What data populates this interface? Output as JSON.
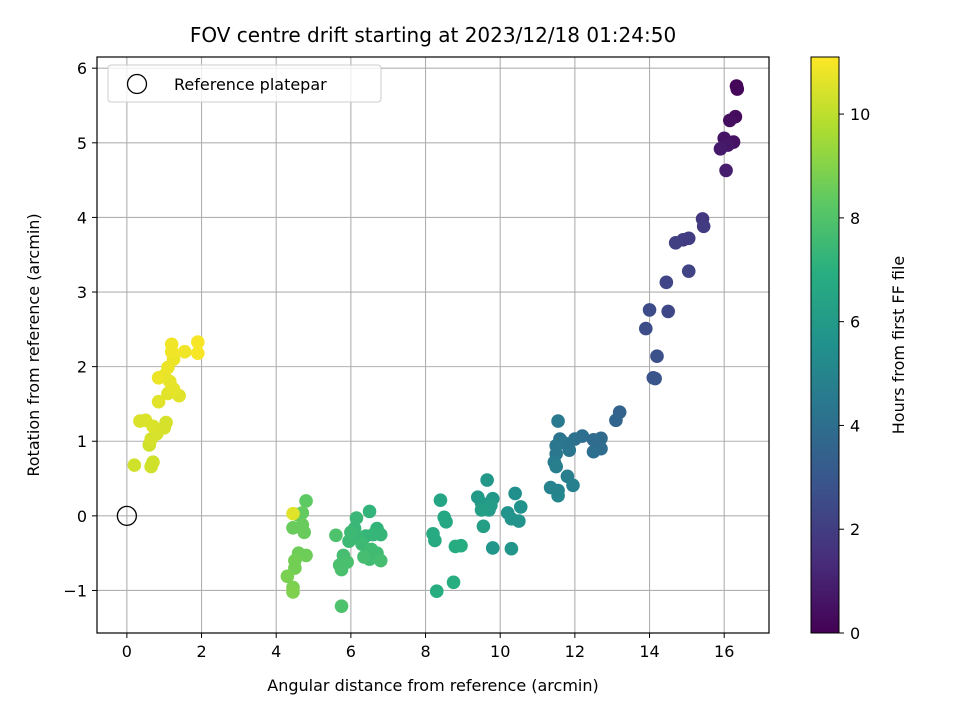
{
  "chart_data": {
    "type": "scatter",
    "title": "FOV centre drift starting at 2023/12/18 01:24:50",
    "xlabel": "Angular distance from reference (arcmin)",
    "ylabel": "Rotation from reference (arcmin)",
    "colorbar_label": "Hours from first FF file",
    "colormap": "viridis",
    "xlim": [
      -0.8,
      17.2
    ],
    "ylim": [
      -1.57,
      6.15
    ],
    "clim": [
      0,
      11.1
    ],
    "xticks": [
      "0",
      "2",
      "4",
      "6",
      "8",
      "10",
      "12",
      "14",
      "16"
    ],
    "xtick_values": [
      0,
      2,
      4,
      6,
      8,
      10,
      12,
      14,
      16
    ],
    "yticks": [
      "−1",
      "0",
      "1",
      "2",
      "3",
      "4",
      "5",
      "6"
    ],
    "ytick_values": [
      -1,
      0,
      1,
      2,
      3,
      4,
      5,
      6
    ],
    "cticks": [
      "0",
      "2",
      "4",
      "6",
      "8",
      "10"
    ],
    "ctick_values": [
      0,
      2,
      4,
      6,
      8,
      10
    ],
    "grid": true,
    "legend": {
      "placement": "top-left",
      "entries": [
        "Reference platepar"
      ]
    },
    "reference_point": {
      "x": 0,
      "y": 0
    },
    "points": [
      {
        "x": 16.33,
        "y": 5.76,
        "c": 0.1
      },
      {
        "x": 16.35,
        "y": 5.72,
        "c": 0.2
      },
      {
        "x": 16.3,
        "y": 5.35,
        "c": 0.3
      },
      {
        "x": 16.15,
        "y": 5.3,
        "c": 0.4
      },
      {
        "x": 16.25,
        "y": 5.01,
        "c": 0.5
      },
      {
        "x": 16.0,
        "y": 5.06,
        "c": 0.6
      },
      {
        "x": 16.1,
        "y": 4.97,
        "c": 0.7
      },
      {
        "x": 15.9,
        "y": 4.92,
        "c": 0.8
      },
      {
        "x": 16.05,
        "y": 4.63,
        "c": 0.9
      },
      {
        "x": 15.42,
        "y": 3.98,
        "c": 1.8
      },
      {
        "x": 15.45,
        "y": 3.88,
        "c": 1.9
      },
      {
        "x": 15.05,
        "y": 3.72,
        "c": 2.0
      },
      {
        "x": 14.9,
        "y": 3.7,
        "c": 2.0
      },
      {
        "x": 14.7,
        "y": 3.66,
        "c": 2.1
      },
      {
        "x": 15.05,
        "y": 3.28,
        "c": 2.2
      },
      {
        "x": 14.45,
        "y": 3.13,
        "c": 2.3
      },
      {
        "x": 14.5,
        "y": 2.74,
        "c": 2.4
      },
      {
        "x": 14.0,
        "y": 2.76,
        "c": 2.5
      },
      {
        "x": 13.9,
        "y": 2.51,
        "c": 2.6
      },
      {
        "x": 14.2,
        "y": 2.14,
        "c": 2.7
      },
      {
        "x": 14.1,
        "y": 1.85,
        "c": 2.8
      },
      {
        "x": 14.15,
        "y": 1.84,
        "c": 2.9
      },
      {
        "x": 13.2,
        "y": 1.39,
        "c": 3.5
      },
      {
        "x": 13.1,
        "y": 1.28,
        "c": 3.6
      },
      {
        "x": 12.7,
        "y": 1.04,
        "c": 3.8
      },
      {
        "x": 12.6,
        "y": 0.98,
        "c": 3.8
      },
      {
        "x": 12.7,
        "y": 0.9,
        "c": 3.9
      },
      {
        "x": 12.5,
        "y": 1.02,
        "c": 3.9
      },
      {
        "x": 12.5,
        "y": 0.86,
        "c": 4.0
      },
      {
        "x": 12.2,
        "y": 1.07,
        "c": 4.0
      },
      {
        "x": 12.0,
        "y": 1.03,
        "c": 4.1
      },
      {
        "x": 11.8,
        "y": 0.96,
        "c": 4.2
      },
      {
        "x": 11.6,
        "y": 1.03,
        "c": 4.2
      },
      {
        "x": 11.7,
        "y": 0.98,
        "c": 4.3
      },
      {
        "x": 11.85,
        "y": 0.88,
        "c": 4.3
      },
      {
        "x": 11.5,
        "y": 0.94,
        "c": 4.4
      },
      {
        "x": 11.5,
        "y": 0.83,
        "c": 4.4
      },
      {
        "x": 11.55,
        "y": 1.27,
        "c": 4.5
      },
      {
        "x": 11.45,
        "y": 0.72,
        "c": 4.6
      },
      {
        "x": 11.5,
        "y": 0.66,
        "c": 4.7
      },
      {
        "x": 11.8,
        "y": 0.53,
        "c": 4.7
      },
      {
        "x": 11.95,
        "y": 0.41,
        "c": 4.8
      },
      {
        "x": 11.35,
        "y": 0.38,
        "c": 4.9
      },
      {
        "x": 11.55,
        "y": 0.34,
        "c": 4.9
      },
      {
        "x": 11.55,
        "y": 0.27,
        "c": 5.0
      },
      {
        "x": 10.4,
        "y": 0.3,
        "c": 5.5
      },
      {
        "x": 10.55,
        "y": 0.12,
        "c": 5.6
      },
      {
        "x": 10.2,
        "y": 0.04,
        "c": 5.6
      },
      {
        "x": 10.3,
        "y": -0.04,
        "c": 5.7
      },
      {
        "x": 10.5,
        "y": -0.07,
        "c": 5.7
      },
      {
        "x": 10.3,
        "y": -0.44,
        "c": 5.8
      },
      {
        "x": 9.8,
        "y": -0.43,
        "c": 5.8
      },
      {
        "x": 9.65,
        "y": 0.48,
        "c": 5.9
      },
      {
        "x": 9.8,
        "y": 0.23,
        "c": 5.9
      },
      {
        "x": 9.4,
        "y": 0.25,
        "c": 6.0
      },
      {
        "x": 9.5,
        "y": 0.17,
        "c": 6.0
      },
      {
        "x": 9.75,
        "y": 0.14,
        "c": 6.1
      },
      {
        "x": 9.7,
        "y": 0.08,
        "c": 6.1
      },
      {
        "x": 9.5,
        "y": 0.08,
        "c": 6.2
      },
      {
        "x": 9.55,
        "y": -0.14,
        "c": 6.2
      },
      {
        "x": 8.4,
        "y": 0.21,
        "c": 6.5
      },
      {
        "x": 8.5,
        "y": -0.02,
        "c": 6.6
      },
      {
        "x": 8.55,
        "y": -0.08,
        "c": 6.6
      },
      {
        "x": 8.2,
        "y": -0.24,
        "c": 6.7
      },
      {
        "x": 8.25,
        "y": -0.33,
        "c": 6.7
      },
      {
        "x": 8.8,
        "y": -0.41,
        "c": 6.8
      },
      {
        "x": 8.95,
        "y": -0.4,
        "c": 6.8
      },
      {
        "x": 8.75,
        "y": -0.89,
        "c": 6.9
      },
      {
        "x": 8.3,
        "y": -1.01,
        "c": 6.9
      },
      {
        "x": 6.5,
        "y": 0.06,
        "c": 7.2
      },
      {
        "x": 6.7,
        "y": -0.17,
        "c": 7.2
      },
      {
        "x": 6.6,
        "y": -0.25,
        "c": 7.3
      },
      {
        "x": 6.8,
        "y": -0.25,
        "c": 7.3
      },
      {
        "x": 6.4,
        "y": -0.27,
        "c": 7.3
      },
      {
        "x": 6.2,
        "y": -0.3,
        "c": 7.4
      },
      {
        "x": 6.1,
        "y": -0.17,
        "c": 7.4
      },
      {
        "x": 6.15,
        "y": -0.03,
        "c": 7.4
      },
      {
        "x": 6.0,
        "y": -0.22,
        "c": 7.5
      },
      {
        "x": 5.95,
        "y": -0.34,
        "c": 7.5
      },
      {
        "x": 6.3,
        "y": -0.38,
        "c": 7.5
      },
      {
        "x": 6.55,
        "y": -0.45,
        "c": 7.6
      },
      {
        "x": 6.7,
        "y": -0.5,
        "c": 7.6
      },
      {
        "x": 6.5,
        "y": -0.58,
        "c": 7.6
      },
      {
        "x": 6.8,
        "y": -0.6,
        "c": 7.7
      },
      {
        "x": 6.35,
        "y": -0.55,
        "c": 7.7
      },
      {
        "x": 5.8,
        "y": -0.53,
        "c": 7.7
      },
      {
        "x": 5.9,
        "y": -0.62,
        "c": 7.8
      },
      {
        "x": 5.7,
        "y": -0.66,
        "c": 7.8
      },
      {
        "x": 5.75,
        "y": -0.72,
        "c": 7.8
      },
      {
        "x": 5.6,
        "y": -0.26,
        "c": 7.9
      },
      {
        "x": 5.75,
        "y": -1.21,
        "c": 7.9
      },
      {
        "x": 4.8,
        "y": 0.2,
        "c": 8.3
      },
      {
        "x": 4.7,
        "y": 0.04,
        "c": 8.4
      },
      {
        "x": 4.55,
        "y": 0.02,
        "c": 8.4
      },
      {
        "x": 4.7,
        "y": -0.12,
        "c": 8.5
      },
      {
        "x": 4.45,
        "y": -0.16,
        "c": 8.5
      },
      {
        "x": 4.75,
        "y": -0.22,
        "c": 8.5
      },
      {
        "x": 4.6,
        "y": -0.5,
        "c": 8.6
      },
      {
        "x": 4.8,
        "y": -0.53,
        "c": 8.6
      },
      {
        "x": 4.5,
        "y": -0.6,
        "c": 8.7
      },
      {
        "x": 4.5,
        "y": -0.7,
        "c": 8.7
      },
      {
        "x": 4.3,
        "y": -0.81,
        "c": 8.8
      },
      {
        "x": 4.45,
        "y": -0.96,
        "c": 8.8
      },
      {
        "x": 4.45,
        "y": -1.02,
        "c": 8.9
      },
      {
        "x": 4.45,
        "y": 0.03,
        "c": 10.6
      },
      {
        "x": 0.2,
        "y": 0.68,
        "c": 10.3
      },
      {
        "x": 0.65,
        "y": 0.66,
        "c": 10.3
      },
      {
        "x": 0.7,
        "y": 0.72,
        "c": 10.3
      },
      {
        "x": 0.6,
        "y": 0.95,
        "c": 10.3
      },
      {
        "x": 0.65,
        "y": 1.03,
        "c": 10.4
      },
      {
        "x": 0.8,
        "y": 1.1,
        "c": 10.4
      },
      {
        "x": 1.0,
        "y": 1.18,
        "c": 10.4
      },
      {
        "x": 1.05,
        "y": 1.25,
        "c": 10.4
      },
      {
        "x": 0.7,
        "y": 1.2,
        "c": 10.5
      },
      {
        "x": 0.5,
        "y": 1.28,
        "c": 10.5
      },
      {
        "x": 0.35,
        "y": 1.27,
        "c": 10.5
      },
      {
        "x": 0.85,
        "y": 1.53,
        "c": 10.6
      },
      {
        "x": 1.1,
        "y": 1.64,
        "c": 10.6
      },
      {
        "x": 1.4,
        "y": 1.61,
        "c": 10.6
      },
      {
        "x": 1.25,
        "y": 1.7,
        "c": 10.7
      },
      {
        "x": 1.15,
        "y": 1.8,
        "c": 10.7
      },
      {
        "x": 1.0,
        "y": 1.88,
        "c": 10.7
      },
      {
        "x": 0.85,
        "y": 1.85,
        "c": 10.8
      },
      {
        "x": 1.1,
        "y": 1.99,
        "c": 10.8
      },
      {
        "x": 1.25,
        "y": 2.1,
        "c": 10.8
      },
      {
        "x": 1.2,
        "y": 2.2,
        "c": 10.9
      },
      {
        "x": 1.2,
        "y": 2.3,
        "c": 10.9
      },
      {
        "x": 1.55,
        "y": 2.2,
        "c": 10.9
      },
      {
        "x": 1.9,
        "y": 2.18,
        "c": 11.0
      },
      {
        "x": 1.9,
        "y": 2.33,
        "c": 11.0
      }
    ]
  }
}
